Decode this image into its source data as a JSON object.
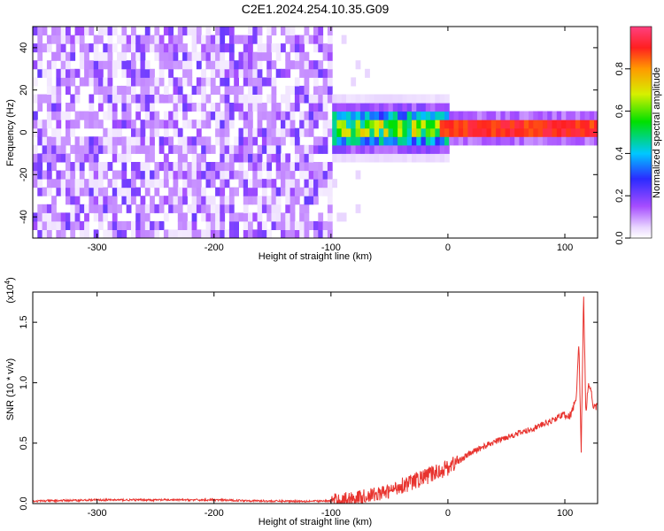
{
  "title": "C2E1.2024.254.10.35.G09",
  "chart_data": [
    {
      "type": "heatmap",
      "xlabel": "Height of straight line (km)",
      "ylabel": "Frequency (Hz)",
      "xlim": [
        -355,
        128
      ],
      "ylim": [
        -50,
        50
      ],
      "x_ticks": [
        "-300",
        "-200",
        "-100",
        "0",
        "100"
      ],
      "y_ticks": [
        "-40",
        "-20",
        "0",
        "20",
        "40"
      ],
      "colorbar": {
        "label": "Normalized spectral amplitude",
        "range": [
          0,
          1
        ],
        "ticks": [
          "0.0",
          "0.2",
          "0.4",
          "0.6",
          "0.8"
        ]
      },
      "ridge": {
        "frequency_hz": 2,
        "start_height_km": -105,
        "peak_amplitude": 0.95
      },
      "noise_region": {
        "from_km": -355,
        "to_km": -100,
        "amplitude": 0.15
      }
    },
    {
      "type": "line",
      "xlabel": "Height of straight line (km)",
      "ylabel": "SNR (10 * v/v)",
      "exponent_label": "(x10",
      "exponent_sup": "4",
      "xlim": [
        -355,
        128
      ],
      "ylim": [
        0,
        1.75
      ],
      "x_ticks": [
        "-300",
        "-200",
        "-100",
        "0",
        "100"
      ],
      "y_ticks": [
        "0.0",
        "0.5",
        "1.0",
        "1.5"
      ],
      "line_color": "#e8332e",
      "series": [
        {
          "x": [
            -355,
            -300,
            -250,
            -200,
            -150,
            -100,
            -85,
            -70,
            -60,
            -50,
            -40,
            -30,
            -20,
            -10,
            0,
            10,
            20,
            30,
            40,
            50,
            60,
            70,
            80,
            90,
            95,
            100,
            105,
            110,
            112,
            114,
            116,
            118,
            120,
            125,
            128
          ],
          "values": [
            0.02,
            0.03,
            0.03,
            0.03,
            0.02,
            0.02,
            0.04,
            0.06,
            0.08,
            0.1,
            0.15,
            0.18,
            0.22,
            0.26,
            0.3,
            0.36,
            0.42,
            0.47,
            0.51,
            0.55,
            0.58,
            0.61,
            0.65,
            0.69,
            0.72,
            0.74,
            0.72,
            0.9,
            1.33,
            0.45,
            1.75,
            0.7,
            1.0,
            0.8,
            0.8
          ]
        }
      ]
    }
  ]
}
